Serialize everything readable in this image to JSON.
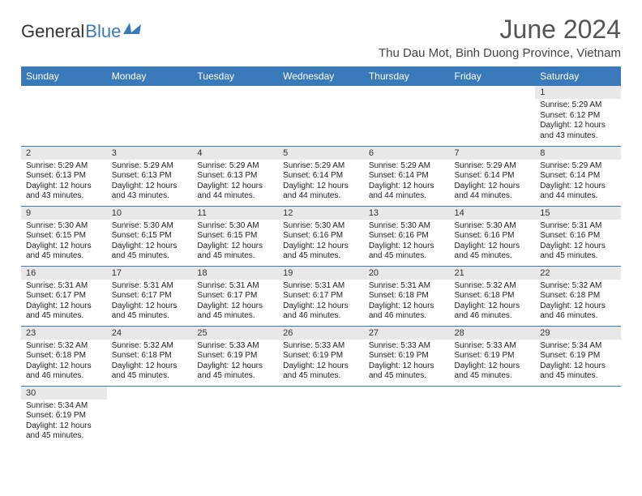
{
  "logo": {
    "text1": "General",
    "text2": "Blue",
    "icon_color": "#3a7ab8"
  },
  "header": {
    "month_title": "June 2024",
    "location": "Thu Dau Mot, Binh Duong Province, Vietnam"
  },
  "colors": {
    "header_bg": "#3a7ab8",
    "header_text": "#ffffff",
    "daynum_bg": "#e8e8e8",
    "row_border": "#3a7ab8"
  },
  "weekdays": [
    "Sunday",
    "Monday",
    "Tuesday",
    "Wednesday",
    "Thursday",
    "Friday",
    "Saturday"
  ],
  "weeks": [
    [
      null,
      null,
      null,
      null,
      null,
      null,
      {
        "n": "1",
        "sunrise": "Sunrise: 5:29 AM",
        "sunset": "Sunset: 6:12 PM",
        "daylight": "Daylight: 12 hours and 43 minutes."
      }
    ],
    [
      {
        "n": "2",
        "sunrise": "Sunrise: 5:29 AM",
        "sunset": "Sunset: 6:13 PM",
        "daylight": "Daylight: 12 hours and 43 minutes."
      },
      {
        "n": "3",
        "sunrise": "Sunrise: 5:29 AM",
        "sunset": "Sunset: 6:13 PM",
        "daylight": "Daylight: 12 hours and 43 minutes."
      },
      {
        "n": "4",
        "sunrise": "Sunrise: 5:29 AM",
        "sunset": "Sunset: 6:13 PM",
        "daylight": "Daylight: 12 hours and 44 minutes."
      },
      {
        "n": "5",
        "sunrise": "Sunrise: 5:29 AM",
        "sunset": "Sunset: 6:14 PM",
        "daylight": "Daylight: 12 hours and 44 minutes."
      },
      {
        "n": "6",
        "sunrise": "Sunrise: 5:29 AM",
        "sunset": "Sunset: 6:14 PM",
        "daylight": "Daylight: 12 hours and 44 minutes."
      },
      {
        "n": "7",
        "sunrise": "Sunrise: 5:29 AM",
        "sunset": "Sunset: 6:14 PM",
        "daylight": "Daylight: 12 hours and 44 minutes."
      },
      {
        "n": "8",
        "sunrise": "Sunrise: 5:29 AM",
        "sunset": "Sunset: 6:14 PM",
        "daylight": "Daylight: 12 hours and 44 minutes."
      }
    ],
    [
      {
        "n": "9",
        "sunrise": "Sunrise: 5:30 AM",
        "sunset": "Sunset: 6:15 PM",
        "daylight": "Daylight: 12 hours and 45 minutes."
      },
      {
        "n": "10",
        "sunrise": "Sunrise: 5:30 AM",
        "sunset": "Sunset: 6:15 PM",
        "daylight": "Daylight: 12 hours and 45 minutes."
      },
      {
        "n": "11",
        "sunrise": "Sunrise: 5:30 AM",
        "sunset": "Sunset: 6:15 PM",
        "daylight": "Daylight: 12 hours and 45 minutes."
      },
      {
        "n": "12",
        "sunrise": "Sunrise: 5:30 AM",
        "sunset": "Sunset: 6:16 PM",
        "daylight": "Daylight: 12 hours and 45 minutes."
      },
      {
        "n": "13",
        "sunrise": "Sunrise: 5:30 AM",
        "sunset": "Sunset: 6:16 PM",
        "daylight": "Daylight: 12 hours and 45 minutes."
      },
      {
        "n": "14",
        "sunrise": "Sunrise: 5:30 AM",
        "sunset": "Sunset: 6:16 PM",
        "daylight": "Daylight: 12 hours and 45 minutes."
      },
      {
        "n": "15",
        "sunrise": "Sunrise: 5:31 AM",
        "sunset": "Sunset: 6:16 PM",
        "daylight": "Daylight: 12 hours and 45 minutes."
      }
    ],
    [
      {
        "n": "16",
        "sunrise": "Sunrise: 5:31 AM",
        "sunset": "Sunset: 6:17 PM",
        "daylight": "Daylight: 12 hours and 45 minutes."
      },
      {
        "n": "17",
        "sunrise": "Sunrise: 5:31 AM",
        "sunset": "Sunset: 6:17 PM",
        "daylight": "Daylight: 12 hours and 45 minutes."
      },
      {
        "n": "18",
        "sunrise": "Sunrise: 5:31 AM",
        "sunset": "Sunset: 6:17 PM",
        "daylight": "Daylight: 12 hours and 45 minutes."
      },
      {
        "n": "19",
        "sunrise": "Sunrise: 5:31 AM",
        "sunset": "Sunset: 6:17 PM",
        "daylight": "Daylight: 12 hours and 46 minutes."
      },
      {
        "n": "20",
        "sunrise": "Sunrise: 5:31 AM",
        "sunset": "Sunset: 6:18 PM",
        "daylight": "Daylight: 12 hours and 46 minutes."
      },
      {
        "n": "21",
        "sunrise": "Sunrise: 5:32 AM",
        "sunset": "Sunset: 6:18 PM",
        "daylight": "Daylight: 12 hours and 46 minutes."
      },
      {
        "n": "22",
        "sunrise": "Sunrise: 5:32 AM",
        "sunset": "Sunset: 6:18 PM",
        "daylight": "Daylight: 12 hours and 46 minutes."
      }
    ],
    [
      {
        "n": "23",
        "sunrise": "Sunrise: 5:32 AM",
        "sunset": "Sunset: 6:18 PM",
        "daylight": "Daylight: 12 hours and 46 minutes."
      },
      {
        "n": "24",
        "sunrise": "Sunrise: 5:32 AM",
        "sunset": "Sunset: 6:18 PM",
        "daylight": "Daylight: 12 hours and 45 minutes."
      },
      {
        "n": "25",
        "sunrise": "Sunrise: 5:33 AM",
        "sunset": "Sunset: 6:19 PM",
        "daylight": "Daylight: 12 hours and 45 minutes."
      },
      {
        "n": "26",
        "sunrise": "Sunrise: 5:33 AM",
        "sunset": "Sunset: 6:19 PM",
        "daylight": "Daylight: 12 hours and 45 minutes."
      },
      {
        "n": "27",
        "sunrise": "Sunrise: 5:33 AM",
        "sunset": "Sunset: 6:19 PM",
        "daylight": "Daylight: 12 hours and 45 minutes."
      },
      {
        "n": "28",
        "sunrise": "Sunrise: 5:33 AM",
        "sunset": "Sunset: 6:19 PM",
        "daylight": "Daylight: 12 hours and 45 minutes."
      },
      {
        "n": "29",
        "sunrise": "Sunrise: 5:34 AM",
        "sunset": "Sunset: 6:19 PM",
        "daylight": "Daylight: 12 hours and 45 minutes."
      }
    ],
    [
      {
        "n": "30",
        "sunrise": "Sunrise: 5:34 AM",
        "sunset": "Sunset: 6:19 PM",
        "daylight": "Daylight: 12 hours and 45 minutes."
      },
      null,
      null,
      null,
      null,
      null,
      null
    ]
  ]
}
